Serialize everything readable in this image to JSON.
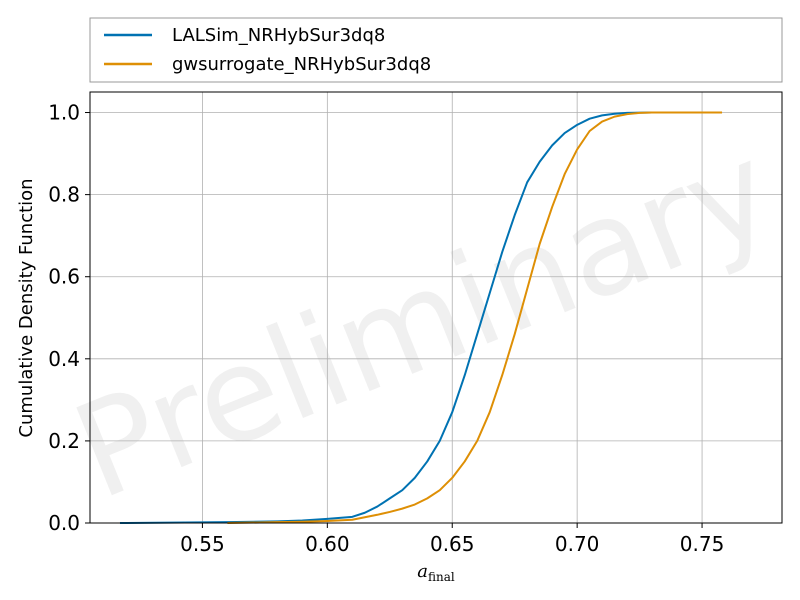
{
  "chart_data": {
    "type": "line",
    "title": "",
    "xlabel_main": "a",
    "xlabel_sub": "final",
    "ylabel": "Cumulative Density Function",
    "xlim": [
      0.505,
      0.782
    ],
    "ylim": [
      0,
      1.05
    ],
    "xticks": [
      0.55,
      0.6,
      0.65,
      0.7,
      0.75
    ],
    "xtick_labels": [
      "0.55",
      "0.60",
      "0.65",
      "0.70",
      "0.75"
    ],
    "yticks": [
      0.0,
      0.2,
      0.4,
      0.6,
      0.8,
      1.0
    ],
    "ytick_labels": [
      "0.0",
      "0.2",
      "0.4",
      "0.6",
      "0.8",
      "1.0"
    ],
    "grid": true,
    "legend_position": "top-outside",
    "watermark": "Preliminary",
    "series": [
      {
        "name": "LALSim_NRHybSur3dq8",
        "color": "#0072b2",
        "x": [
          0.517,
          0.56,
          0.58,
          0.59,
          0.6,
          0.61,
          0.615,
          0.62,
          0.625,
          0.63,
          0.635,
          0.64,
          0.645,
          0.65,
          0.655,
          0.66,
          0.665,
          0.67,
          0.675,
          0.68,
          0.685,
          0.69,
          0.695,
          0.7,
          0.705,
          0.71,
          0.715,
          0.72,
          0.73,
          0.741
        ],
        "y": [
          0.0,
          0.002,
          0.004,
          0.006,
          0.01,
          0.015,
          0.025,
          0.04,
          0.06,
          0.08,
          0.11,
          0.15,
          0.2,
          0.27,
          0.36,
          0.46,
          0.56,
          0.66,
          0.75,
          0.83,
          0.88,
          0.92,
          0.95,
          0.97,
          0.985,
          0.993,
          0.997,
          0.999,
          1.0,
          1.0
        ]
      },
      {
        "name": "gwsurrogate_NRHybSur3dq8",
        "color": "#de8f05",
        "x": [
          0.56,
          0.58,
          0.59,
          0.6,
          0.61,
          0.615,
          0.62,
          0.625,
          0.63,
          0.635,
          0.64,
          0.645,
          0.65,
          0.655,
          0.66,
          0.665,
          0.67,
          0.675,
          0.68,
          0.685,
          0.69,
          0.695,
          0.7,
          0.705,
          0.71,
          0.715,
          0.72,
          0.725,
          0.73,
          0.74,
          0.758
        ],
        "y": [
          0.0,
          0.002,
          0.003,
          0.005,
          0.008,
          0.014,
          0.02,
          0.027,
          0.035,
          0.045,
          0.06,
          0.08,
          0.11,
          0.15,
          0.2,
          0.27,
          0.36,
          0.46,
          0.57,
          0.68,
          0.77,
          0.85,
          0.91,
          0.955,
          0.978,
          0.99,
          0.996,
          0.999,
          1.0,
          1.0,
          1.0
        ]
      }
    ]
  }
}
